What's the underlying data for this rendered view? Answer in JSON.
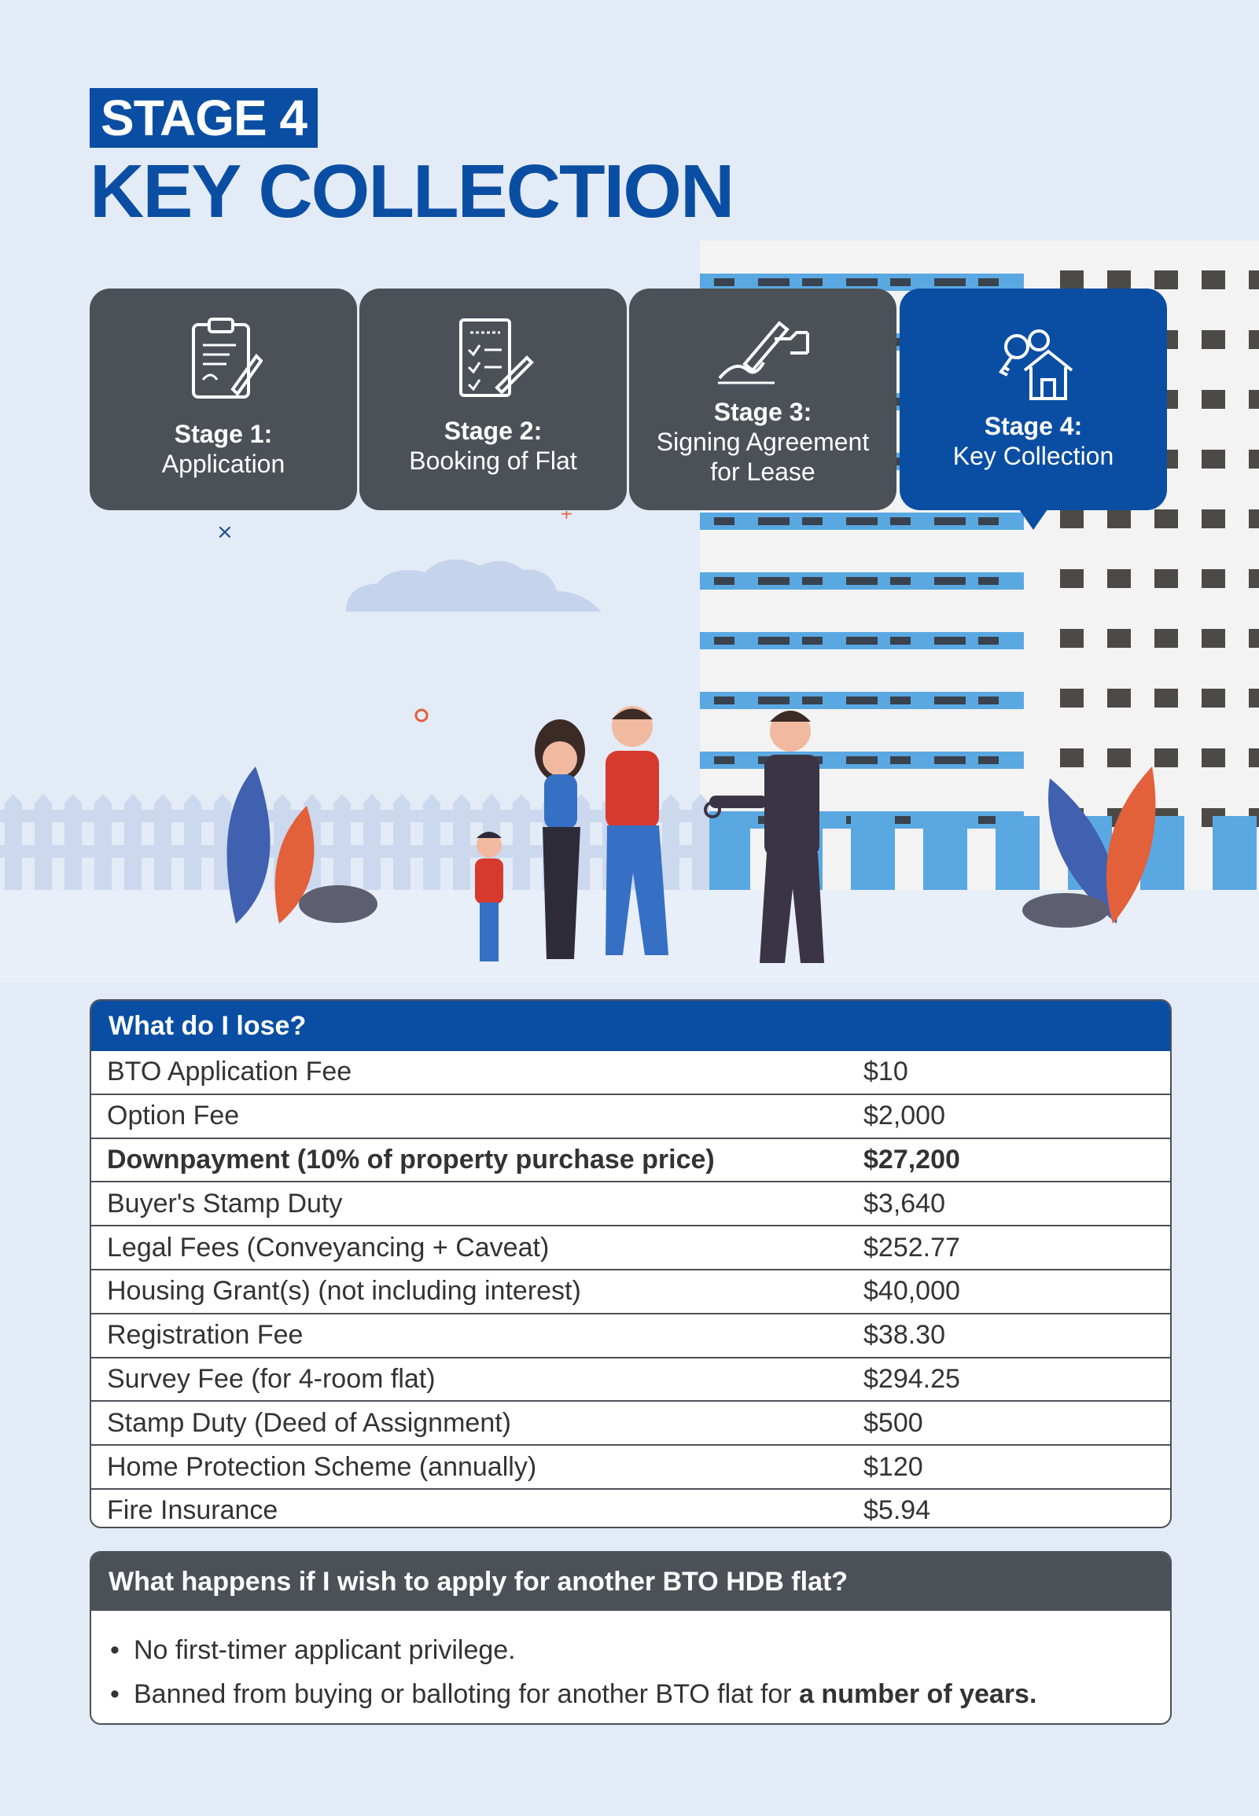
{
  "header": {
    "stage_tag": "STAGE 4",
    "title": "KEY COLLECTION"
  },
  "stages": [
    {
      "label_bold": "Stage 1:",
      "label": "Application",
      "icon": "clipboard-icon",
      "active": false
    },
    {
      "label_bold": "Stage 2:",
      "label": "Booking of Flat",
      "icon": "checklist-icon",
      "active": false
    },
    {
      "label_bold": "Stage 3:",
      "label_line1": "Signing Agreement",
      "label_line2": "for Lease",
      "icon": "signing-icon",
      "active": false
    },
    {
      "label_bold": "Stage 4:",
      "label": "Key Collection",
      "icon": "keys-house-icon",
      "active": true
    }
  ],
  "colors": {
    "brand_blue": "#0a4ea3",
    "card_gray": "#4c5158",
    "background": "#e3ebf6",
    "building_blue": "#5aa8e2"
  },
  "lose_table": {
    "header": "What do I lose?",
    "rows": [
      {
        "item": "BTO Application Fee",
        "amount": "$10",
        "bold": false
      },
      {
        "item": "Option Fee",
        "amount": "$2,000",
        "bold": false
      },
      {
        "item": "Downpayment (10% of property purchase price)",
        "amount": "$27,200",
        "bold": true
      },
      {
        "item": "Buyer's Stamp Duty",
        "amount": "$3,640",
        "bold": false
      },
      {
        "item": "Legal Fees (Conveyancing + Caveat)",
        "amount": "$252.77",
        "bold": false
      },
      {
        "item": "Housing Grant(s) (not including interest)",
        "amount": "$40,000",
        "bold": false
      },
      {
        "item": "Registration Fee",
        "amount": "$38.30",
        "bold": false
      },
      {
        "item": "Survey Fee (for 4-room flat)",
        "amount": "$294.25",
        "bold": false
      },
      {
        "item": "Stamp Duty (Deed of Assignment)",
        "amount": "$500",
        "bold": false
      },
      {
        "item": "Home Protection Scheme (annually)",
        "amount": "$120",
        "bold": false
      },
      {
        "item": "Fire Insurance",
        "amount": "$5.94",
        "bold": false
      }
    ]
  },
  "reapply": {
    "header": "What happens if I wish to apply for another BTO HDB flat?",
    "bullet1": "No first-timer applicant privilege.",
    "bullet2_prefix": "Banned from buying or balloting for another BTO flat for ",
    "bullet2_bold": "a number of years."
  }
}
